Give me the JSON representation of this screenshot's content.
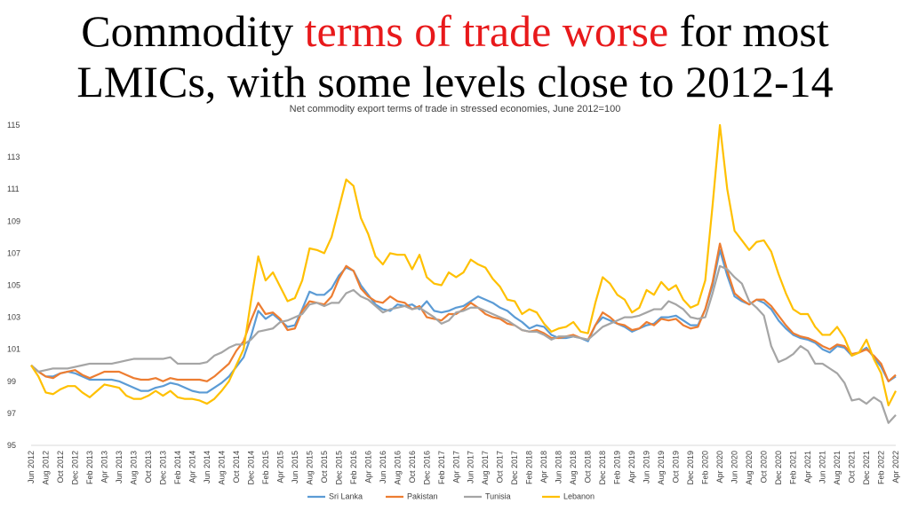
{
  "chart_data": {
    "type": "line",
    "title_lines": [
      [
        {
          "text": "Commodity ",
          "color": "#000000"
        },
        {
          "text": "terms of trade worse",
          "color": "#e8191b"
        },
        {
          "text": " for most",
          "color": "#000000"
        }
      ],
      [
        {
          "text": "LMICs, with some levels close to 2012-14",
          "color": "#000000"
        }
      ]
    ],
    "subtitle": "Net commodity export terms of trade in stressed economies, June 2012=100",
    "categories": [
      "Jun 2012",
      null,
      "Aug 2012",
      null,
      "Oct 2012",
      null,
      "Dec 2012",
      null,
      "Feb 2013",
      null,
      "Apr 2013",
      null,
      "Jun 2013",
      null,
      "Aug 2013",
      null,
      "Oct 2013",
      null,
      "Dec 2013",
      null,
      "Feb 2014",
      null,
      "Apr 2014",
      null,
      "Jun 2014",
      null,
      "Aug 2014",
      null,
      "Oct 2014",
      null,
      "Dec 2014",
      null,
      "Feb 2015",
      null,
      "Apr 2015",
      null,
      "Jun 2015",
      null,
      "Aug 2015",
      null,
      "Oct 2015",
      null,
      "Dec 2015",
      null,
      "Feb 2016",
      null,
      "Apr 2016",
      null,
      "Jun 2016",
      null,
      "Aug 2016",
      null,
      "Oct 2016",
      null,
      "Dec 2016",
      null,
      "Feb 2017",
      null,
      "Apr 2017",
      null,
      "Jun 2017",
      null,
      "Aug 2017",
      null,
      "Oct 2017",
      null,
      "Dec 2017",
      null,
      "Feb 2018",
      null,
      "Apr 2018",
      null,
      "Jun 2018",
      null,
      "Aug 2018",
      null,
      "Oct 2018",
      null,
      "Dec 2018",
      null,
      "Feb 2019",
      null,
      "Apr 2019",
      null,
      "Jun 2019",
      null,
      "Aug 2019",
      null,
      "Oct 2019",
      null,
      "Dec 2019",
      null,
      "Feb 2020",
      null,
      "Apr 2020",
      null,
      "Jun 2020",
      null,
      "Aug 2020",
      null,
      "Oct 2020",
      null,
      "Dec 2020",
      null,
      "Feb 2021",
      null,
      "Apr 2021",
      null,
      "Jun 2021",
      null,
      "Aug 2021",
      null,
      "Oct 2021",
      null,
      "Dec 2021",
      null,
      "Feb 2022",
      null,
      "Apr 2022"
    ],
    "series": [
      {
        "name": "Sri Lanka",
        "color": "#5b9bd5",
        "values": [
          100,
          99.6,
          99.3,
          99.3,
          99.5,
          99.6,
          99.5,
          99.3,
          99.1,
          99.1,
          99.1,
          99.1,
          99.0,
          98.8,
          98.6,
          98.4,
          98.4,
          98.6,
          98.7,
          98.9,
          98.8,
          98.6,
          98.4,
          98.3,
          98.3,
          98.6,
          98.9,
          99.3,
          99.9,
          100.5,
          101.8,
          103.4,
          102.9,
          103.2,
          102.8,
          102.4,
          102.5,
          103.5,
          104.6,
          104.4,
          104.4,
          104.8,
          105.6,
          106.1,
          105.9,
          105.0,
          104.4,
          103.8,
          103.5,
          103.4,
          103.8,
          103.7,
          103.8,
          103.5,
          104.0,
          103.4,
          103.3,
          103.4,
          103.6,
          103.7,
          104.0,
          104.3,
          104.1,
          103.9,
          103.6,
          103.4,
          103.0,
          102.7,
          102.3,
          102.5,
          102.4,
          101.9,
          101.7,
          101.7,
          101.8,
          101.7,
          101.5,
          102.5,
          103.0,
          102.8,
          102.6,
          102.4,
          102.1,
          102.3,
          102.5,
          102.6,
          103.0,
          103.0,
          103.1,
          102.8,
          102.5,
          102.5,
          103.5,
          105.0,
          107.2,
          105.6,
          104.3,
          104.0,
          103.8,
          104.1,
          103.9,
          103.5,
          102.8,
          102.3,
          101.9,
          101.7,
          101.6,
          101.4,
          101.0,
          100.8,
          101.2,
          101.1,
          100.6,
          100.8,
          101.1,
          100.5,
          99.9,
          99.0,
          99.3
        ]
      },
      {
        "name": "Pakistan",
        "color": "#ed7d31",
        "values": [
          100,
          99.6,
          99.3,
          99.2,
          99.5,
          99.6,
          99.7,
          99.4,
          99.2,
          99.4,
          99.6,
          99.6,
          99.6,
          99.4,
          99.2,
          99.1,
          99.1,
          99.2,
          99.0,
          99.2,
          99.1,
          99.1,
          99.1,
          99.1,
          99.0,
          99.3,
          99.7,
          100.1,
          100.9,
          101.5,
          102.8,
          103.9,
          103.2,
          103.3,
          102.9,
          102.2,
          102.3,
          103.4,
          104.0,
          103.9,
          103.8,
          104.3,
          105.4,
          106.2,
          105.9,
          104.8,
          104.3,
          104.0,
          103.9,
          104.3,
          104.0,
          103.9,
          103.5,
          103.7,
          103.0,
          102.9,
          102.8,
          103.2,
          103.2,
          103.5,
          103.9,
          103.6,
          103.2,
          103.0,
          102.9,
          102.6,
          102.5,
          102.2,
          102.1,
          102.2,
          102.0,
          101.7,
          101.7,
          101.8,
          101.9,
          101.7,
          101.6,
          102.5,
          103.3,
          103.0,
          102.6,
          102.5,
          102.2,
          102.3,
          102.7,
          102.5,
          102.9,
          102.8,
          102.9,
          102.5,
          102.3,
          102.4,
          103.5,
          105.2,
          107.6,
          105.9,
          104.5,
          104.1,
          103.8,
          104.1,
          104.1,
          103.7,
          103.1,
          102.5,
          102.0,
          101.8,
          101.7,
          101.5,
          101.2,
          101.0,
          101.3,
          101.2,
          100.7,
          100.8,
          101.0,
          100.6,
          100.1,
          99.0,
          99.4
        ]
      },
      {
        "name": "Tunisia",
        "color": "#a5a5a5",
        "values": [
          100,
          99.6,
          99.7,
          99.8,
          99.8,
          99.8,
          99.9,
          100.0,
          100.1,
          100.1,
          100.1,
          100.1,
          100.2,
          100.3,
          100.4,
          100.4,
          100.4,
          100.4,
          100.4,
          100.5,
          100.1,
          100.1,
          100.1,
          100.1,
          100.2,
          100.6,
          100.8,
          101.1,
          101.3,
          101.3,
          101.6,
          102.1,
          102.2,
          102.3,
          102.7,
          102.8,
          103.0,
          103.2,
          103.8,
          103.9,
          103.7,
          103.9,
          103.9,
          104.5,
          104.7,
          104.3,
          104.1,
          103.7,
          103.3,
          103.5,
          103.6,
          103.7,
          103.5,
          103.6,
          103.3,
          103.0,
          102.6,
          102.8,
          103.3,
          103.4,
          103.6,
          103.6,
          103.4,
          103.2,
          103.0,
          102.8,
          102.5,
          102.2,
          102.1,
          102.1,
          101.9,
          101.6,
          101.8,
          101.8,
          101.8,
          101.7,
          101.6,
          102.0,
          102.4,
          102.6,
          102.8,
          103.0,
          103.0,
          103.1,
          103.3,
          103.5,
          103.5,
          104.0,
          103.8,
          103.5,
          103.0,
          102.9,
          103.0,
          104.5,
          106.2,
          106.0,
          105.5,
          105.1,
          104.0,
          103.6,
          103.1,
          101.2,
          100.2,
          100.4,
          100.7,
          101.2,
          100.9,
          100.1,
          100.1,
          99.8,
          99.5,
          98.9,
          97.8,
          97.9,
          97.6,
          98.0,
          97.7,
          96.4,
          96.9
        ]
      },
      {
        "name": "Lebanon",
        "color": "#ffc000",
        "values": [
          100,
          99.3,
          98.3,
          98.2,
          98.5,
          98.7,
          98.7,
          98.3,
          98.0,
          98.4,
          98.8,
          98.7,
          98.6,
          98.1,
          97.9,
          97.9,
          98.1,
          98.4,
          98.1,
          98.4,
          98.0,
          97.9,
          97.9,
          97.8,
          97.6,
          97.9,
          98.4,
          99.0,
          100.0,
          101.0,
          104.0,
          106.8,
          105.3,
          105.8,
          104.9,
          104.0,
          104.2,
          105.3,
          107.3,
          107.2,
          107.0,
          108.0,
          109.8,
          111.6,
          111.2,
          109.2,
          108.2,
          106.8,
          106.3,
          107.0,
          106.9,
          106.9,
          106.0,
          106.9,
          105.5,
          105.1,
          105.0,
          105.8,
          105.5,
          105.8,
          106.6,
          106.3,
          106.1,
          105.4,
          104.9,
          104.1,
          104.0,
          103.2,
          103.5,
          103.3,
          102.6,
          102.1,
          102.3,
          102.4,
          102.7,
          102.1,
          102.0,
          103.9,
          105.5,
          105.1,
          104.4,
          104.1,
          103.3,
          103.6,
          104.7,
          104.4,
          105.2,
          104.7,
          105.0,
          104.1,
          103.6,
          103.8,
          105.3,
          110.0,
          115.0,
          111.0,
          108.4,
          107.8,
          107.2,
          107.7,
          107.8,
          107.1,
          105.7,
          104.5,
          103.5,
          103.2,
          103.2,
          102.4,
          101.9,
          101.9,
          102.4,
          101.7,
          100.6,
          100.8,
          101.6,
          100.4,
          99.5,
          97.5,
          98.4
        ]
      }
    ],
    "ylim": [
      95,
      115
    ],
    "yticks": [
      95,
      97,
      99,
      101,
      103,
      105,
      107,
      109,
      111,
      113,
      115
    ],
    "grid": false,
    "legend": "bottom"
  }
}
